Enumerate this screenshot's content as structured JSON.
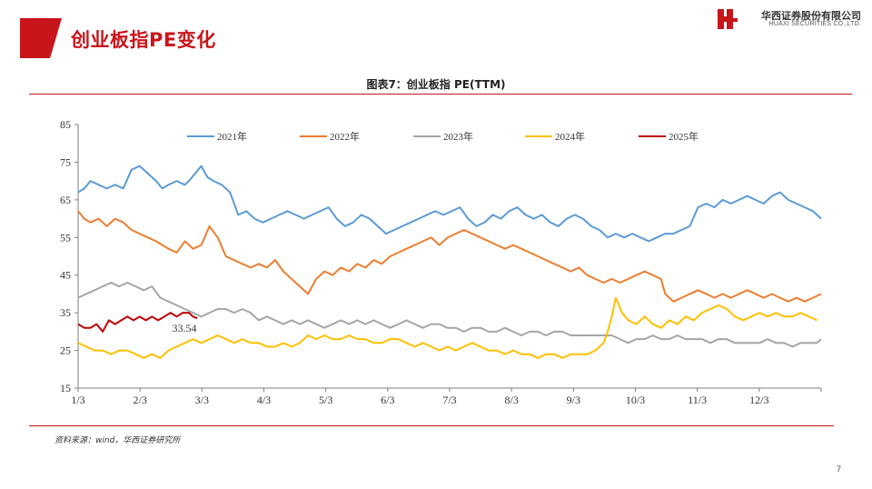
{
  "header": {
    "title": "创业板指PE变化",
    "logo_cn": "华西证券股份有限公司",
    "logo_en": "HUAXI SECURITIES CO.,LTD."
  },
  "colors": {
    "brand": "#c8151b"
  },
  "footer": {
    "source": "资料来源：wind，华西证券研究所",
    "page_number": "7"
  },
  "chart_data": {
    "type": "line",
    "title": "图表7：创业板指 PE(TTM)",
    "xlabel": "",
    "ylabel": "",
    "x_ticks": [
      "1/3",
      "2/3",
      "3/3",
      "4/3",
      "5/3",
      "6/3",
      "7/3",
      "8/3",
      "9/3",
      "10/3",
      "11/3",
      "12/3"
    ],
    "ylim": [
      15,
      85
    ],
    "y_ticks": [
      15,
      25,
      35,
      45,
      55,
      65,
      75,
      85
    ],
    "grid": false,
    "legend_position": "top",
    "annotation": {
      "text": "33.54",
      "x": 58,
      "y": 33.54
    },
    "series": [
      {
        "name": "2021年",
        "color": "#5b9bd5",
        "x": [
          0,
          3,
          6,
          10,
          14,
          18,
          22,
          26,
          30,
          34,
          38,
          41,
          44,
          48,
          52,
          54,
          57,
          60,
          63,
          66,
          70,
          74,
          78,
          82,
          86,
          90,
          94,
          98,
          102,
          106,
          110,
          114,
          118,
          122,
          126,
          130,
          134,
          138,
          142,
          146,
          150,
          154,
          158,
          162,
          166,
          170,
          174,
          178,
          182,
          186,
          190,
          194,
          198,
          202,
          206,
          210,
          214,
          218,
          222,
          226,
          230,
          234,
          238,
          242,
          246,
          250,
          254,
          258,
          262,
          266,
          270,
          274,
          278,
          282,
          286,
          290,
          294,
          298,
          302,
          306,
          310,
          314,
          318,
          322,
          326,
          330,
          334,
          338,
          342,
          346,
          350,
          354,
          358,
          362
        ],
        "values": [
          67,
          68,
          70,
          69,
          68,
          69,
          68,
          73,
          74,
          72,
          70,
          68,
          69,
          70,
          69,
          70,
          72,
          74,
          71,
          70,
          69,
          67,
          61,
          62,
          60,
          59,
          60,
          61,
          62,
          61,
          60,
          61,
          62,
          63,
          60,
          58,
          59,
          61,
          60,
          58,
          56,
          57,
          58,
          59,
          60,
          61,
          62,
          61,
          62,
          63,
          60,
          58,
          59,
          61,
          60,
          62,
          63,
          61,
          60,
          61,
          59,
          58,
          60,
          61,
          60,
          58,
          57,
          55,
          56,
          55,
          56,
          55,
          54,
          55,
          56,
          56,
          57,
          58,
          63,
          64,
          63,
          65,
          64,
          65,
          66,
          65,
          64,
          66,
          67,
          65,
          64,
          63,
          62,
          60
        ]
      },
      {
        "name": "2022年",
        "color": "#ed7d31",
        "x": [
          0,
          3,
          6,
          10,
          14,
          18,
          22,
          26,
          30,
          34,
          38,
          41,
          44,
          48,
          52,
          56,
          60,
          64,
          68,
          72,
          76,
          80,
          84,
          88,
          92,
          96,
          100,
          104,
          108,
          112,
          116,
          120,
          124,
          128,
          132,
          136,
          140,
          144,
          148,
          152,
          156,
          160,
          164,
          168,
          172,
          176,
          180,
          184,
          188,
          192,
          196,
          200,
          204,
          208,
          212,
          216,
          220,
          224,
          228,
          232,
          236,
          240,
          244,
          248,
          252,
          256,
          260,
          264,
          268,
          272,
          276,
          280,
          284,
          286,
          290,
          294,
          298,
          302,
          306,
          310,
          314,
          318,
          322,
          326,
          330,
          334,
          338,
          342,
          346,
          350,
          354,
          358,
          362
        ],
        "values": [
          62,
          60,
          59,
          60,
          58,
          60,
          59,
          57,
          56,
          55,
          54,
          53,
          52,
          51,
          54,
          52,
          53,
          58,
          55,
          50,
          49,
          48,
          47,
          48,
          47,
          49,
          46,
          44,
          42,
          40,
          44,
          46,
          45,
          47,
          46,
          48,
          47,
          49,
          48,
          50,
          51,
          52,
          53,
          54,
          55,
          53,
          55,
          56,
          57,
          56,
          55,
          54,
          53,
          52,
          53,
          52,
          51,
          50,
          49,
          48,
          47,
          46,
          47,
          45,
          44,
          43,
          44,
          43,
          44,
          45,
          46,
          45,
          44,
          40,
          38,
          39,
          40,
          41,
          40,
          39,
          40,
          39,
          40,
          41,
          40,
          39,
          40,
          39,
          38,
          39,
          38,
          39,
          40
        ]
      },
      {
        "name": "2023年",
        "color": "#a5a5a5",
        "x": [
          0,
          4,
          8,
          12,
          16,
          20,
          24,
          28,
          32,
          36,
          40,
          44,
          48,
          52,
          56,
          60,
          64,
          68,
          72,
          76,
          80,
          84,
          88,
          92,
          96,
          100,
          104,
          108,
          112,
          116,
          120,
          124,
          128,
          132,
          136,
          140,
          144,
          148,
          152,
          156,
          160,
          164,
          168,
          172,
          176,
          180,
          184,
          188,
          192,
          196,
          200,
          204,
          208,
          212,
          216,
          220,
          224,
          228,
          232,
          236,
          240,
          244,
          248,
          252,
          256,
          260,
          264,
          268,
          272,
          276,
          280,
          284,
          288,
          292,
          296,
          300,
          304,
          308,
          312,
          316,
          320,
          324,
          328,
          332,
          336,
          340,
          344,
          348,
          352,
          356,
          360,
          362
        ],
        "values": [
          39,
          40,
          41,
          42,
          43,
          42,
          43,
          42,
          41,
          42,
          39,
          38,
          37,
          36,
          35,
          34,
          35,
          36,
          36,
          35,
          36,
          35,
          33,
          34,
          33,
          32,
          33,
          32,
          33,
          32,
          31,
          32,
          33,
          32,
          33,
          32,
          33,
          32,
          31,
          32,
          33,
          32,
          31,
          32,
          32,
          31,
          31,
          30,
          31,
          31,
          30,
          30,
          31,
          30,
          29,
          30,
          30,
          29,
          30,
          30,
          29,
          29,
          29,
          29,
          29,
          29,
          28,
          27,
          28,
          28,
          29,
          28,
          28,
          29,
          28,
          28,
          28,
          27,
          28,
          28,
          27,
          27,
          27,
          27,
          28,
          27,
          27,
          26,
          27,
          27,
          27,
          28
        ]
      },
      {
        "name": "2024年",
        "color": "#ffc000",
        "x": [
          0,
          4,
          8,
          12,
          16,
          20,
          24,
          28,
          32,
          36,
          40,
          44,
          48,
          52,
          56,
          60,
          64,
          68,
          72,
          76,
          80,
          84,
          88,
          92,
          96,
          100,
          104,
          108,
          112,
          116,
          120,
          124,
          128,
          132,
          136,
          140,
          144,
          148,
          152,
          156,
          160,
          164,
          168,
          172,
          176,
          180,
          184,
          188,
          192,
          196,
          200,
          204,
          208,
          212,
          216,
          220,
          224,
          228,
          232,
          236,
          240,
          244,
          248,
          252,
          256,
          258,
          260,
          262,
          265,
          268,
          272,
          276,
          280,
          284,
          288,
          292,
          296,
          300,
          304,
          308,
          312,
          316,
          320,
          324,
          328,
          332,
          336,
          340,
          344,
          348,
          352,
          356,
          360
        ],
        "values": [
          27,
          26,
          25,
          25,
          24,
          25,
          25,
          24,
          23,
          24,
          23,
          25,
          26,
          27,
          28,
          27,
          28,
          29,
          28,
          27,
          28,
          27,
          27,
          26,
          26,
          27,
          26,
          27,
          29,
          28,
          29,
          28,
          28,
          29,
          28,
          28,
          27,
          27,
          28,
          28,
          27,
          26,
          27,
          26,
          25,
          26,
          25,
          26,
          27,
          26,
          25,
          25,
          24,
          25,
          24,
          24,
          23,
          24,
          24,
          23,
          24,
          24,
          24,
          25,
          27,
          30,
          34,
          39,
          35,
          33,
          32,
          34,
          32,
          31,
          33,
          32,
          34,
          33,
          35,
          36,
          37,
          36,
          34,
          33,
          34,
          35,
          34,
          35,
          34,
          34,
          35,
          34,
          33
        ]
      },
      {
        "name": "2025年",
        "color": "#c00000",
        "x": [
          0,
          3,
          6,
          9,
          12,
          15,
          18,
          21,
          24,
          27,
          30,
          33,
          36,
          39,
          42,
          45,
          48,
          51,
          54,
          56,
          58
        ],
        "values": [
          32,
          31,
          31,
          32,
          30,
          33,
          32,
          33,
          34,
          33,
          34,
          33,
          34,
          33,
          34,
          35,
          34,
          35,
          35,
          34,
          33.54
        ]
      }
    ]
  }
}
